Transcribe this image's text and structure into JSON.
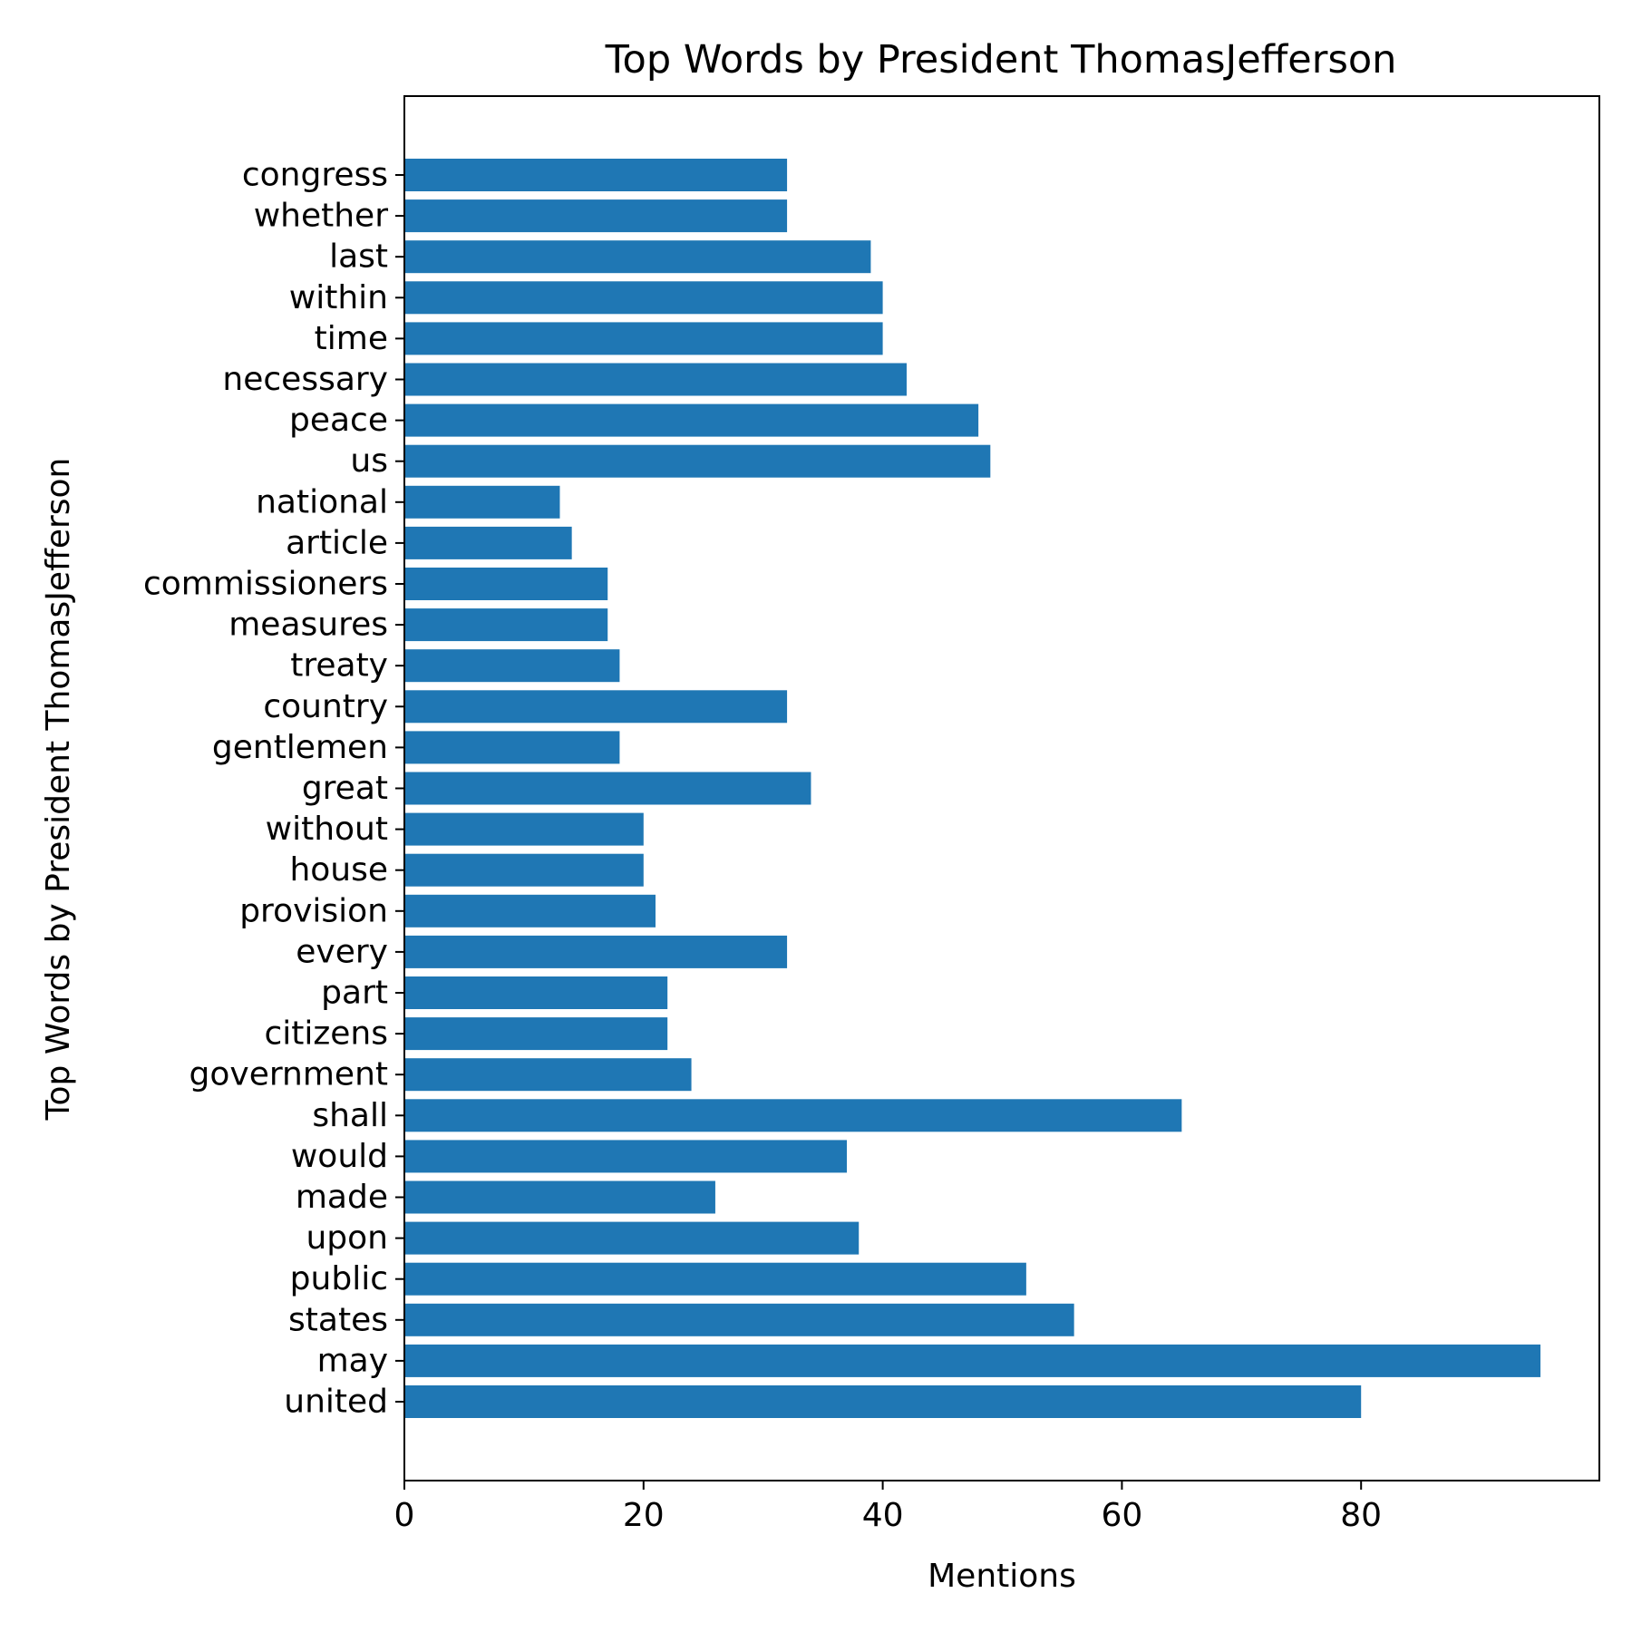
{
  "chart_data": {
    "type": "bar",
    "orientation": "horizontal",
    "title": "Top Words by President ThomasJefferson",
    "xlabel": "Mentions",
    "ylabel": "Top Words by President ThomasJefferson",
    "xlim": [
      0,
      100
    ],
    "xticks": [
      0,
      20,
      40,
      60,
      80
    ],
    "grid": false,
    "bar_color": "#1f77b4",
    "categories": [
      "united",
      "may",
      "states",
      "public",
      "upon",
      "made",
      "would",
      "shall",
      "government",
      "citizens",
      "part",
      "every",
      "provision",
      "house",
      "without",
      "great",
      "gentlemen",
      "country",
      "treaty",
      "measures",
      "commissioners",
      "article",
      "national",
      "us",
      "peace",
      "necessary",
      "time",
      "within",
      "last",
      "whether",
      "congress"
    ],
    "values": [
      80,
      95,
      56,
      52,
      38,
      26,
      37,
      65,
      24,
      22,
      22,
      32,
      21,
      20,
      20,
      34,
      18,
      32,
      18,
      17,
      17,
      14,
      13,
      49,
      48,
      42,
      40,
      40,
      39,
      32,
      32
    ]
  }
}
